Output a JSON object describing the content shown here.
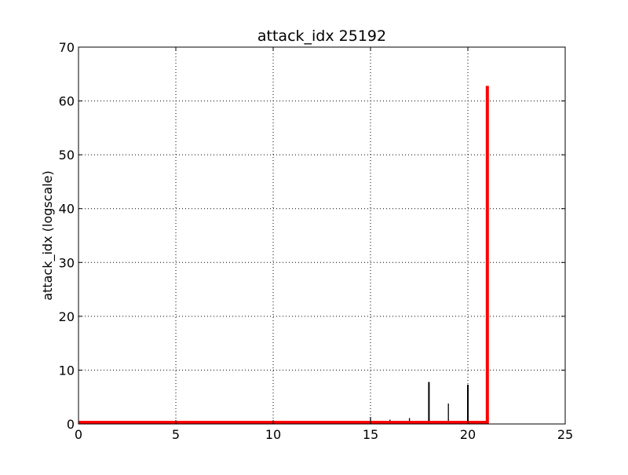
{
  "chart_data": {
    "type": "bar",
    "title": "attack_idx 25192",
    "xlabel": "",
    "ylabel": "attack_idx (logscale)",
    "xlim": [
      0,
      25
    ],
    "ylim": [
      0,
      70
    ],
    "x_ticks": [
      0,
      5,
      10,
      15,
      20,
      25
    ],
    "y_ticks": [
      0,
      10,
      20,
      30,
      40,
      50,
      60,
      70
    ],
    "grid": true,
    "series": [
      {
        "color": "#000000",
        "x": [
          15,
          16,
          17,
          18,
          19,
          20
        ],
        "values": [
          1.3,
          0.8,
          1.1,
          7.8,
          3.8,
          7.3
        ]
      },
      {
        "color": "#ff0000",
        "x": [
          0,
          21,
          21
        ],
        "values": [
          0.3,
          0.3,
          62.8
        ]
      }
    ]
  }
}
